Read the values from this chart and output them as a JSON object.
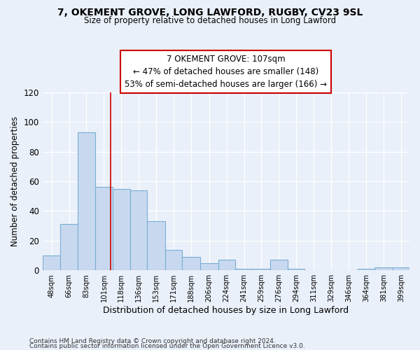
{
  "title1": "7, OKEMENT GROVE, LONG LAWFORD, RUGBY, CV23 9SL",
  "title2": "Size of property relative to detached houses in Long Lawford",
  "xlabel": "Distribution of detached houses by size in Long Lawford",
  "ylabel": "Number of detached properties",
  "bar_color": "#c8d9ef",
  "bar_edge_color": "#7aadd4",
  "categories": [
    "48sqm",
    "66sqm",
    "83sqm",
    "101sqm",
    "118sqm",
    "136sqm",
    "153sqm",
    "171sqm",
    "188sqm",
    "206sqm",
    "224sqm",
    "241sqm",
    "259sqm",
    "276sqm",
    "294sqm",
    "311sqm",
    "329sqm",
    "346sqm",
    "364sqm",
    "381sqm",
    "399sqm"
  ],
  "values": [
    10,
    31,
    93,
    56,
    55,
    54,
    33,
    14,
    9,
    5,
    7,
    1,
    1,
    7,
    1,
    0,
    0,
    0,
    1,
    2,
    2
  ],
  "bin_edges": [
    39,
    57,
    74,
    92,
    109,
    127,
    144,
    162,
    179,
    197,
    215,
    232,
    250,
    267,
    285,
    302,
    320,
    337,
    355,
    372,
    390,
    407
  ],
  "vline_x": 107,
  "vline_color": "#cc0000",
  "annotation_lines": [
    "7 OKEMENT GROVE: 107sqm",
    "← 47% of detached houses are smaller (148)",
    "53% of semi-detached houses are larger (166) →"
  ],
  "ylim": [
    0,
    120
  ],
  "footnote1": "Contains HM Land Registry data © Crown copyright and database right 2024.",
  "footnote2": "Contains public sector information licensed under the Open Government Licence v3.0.",
  "background_color": "#eaf0f9"
}
